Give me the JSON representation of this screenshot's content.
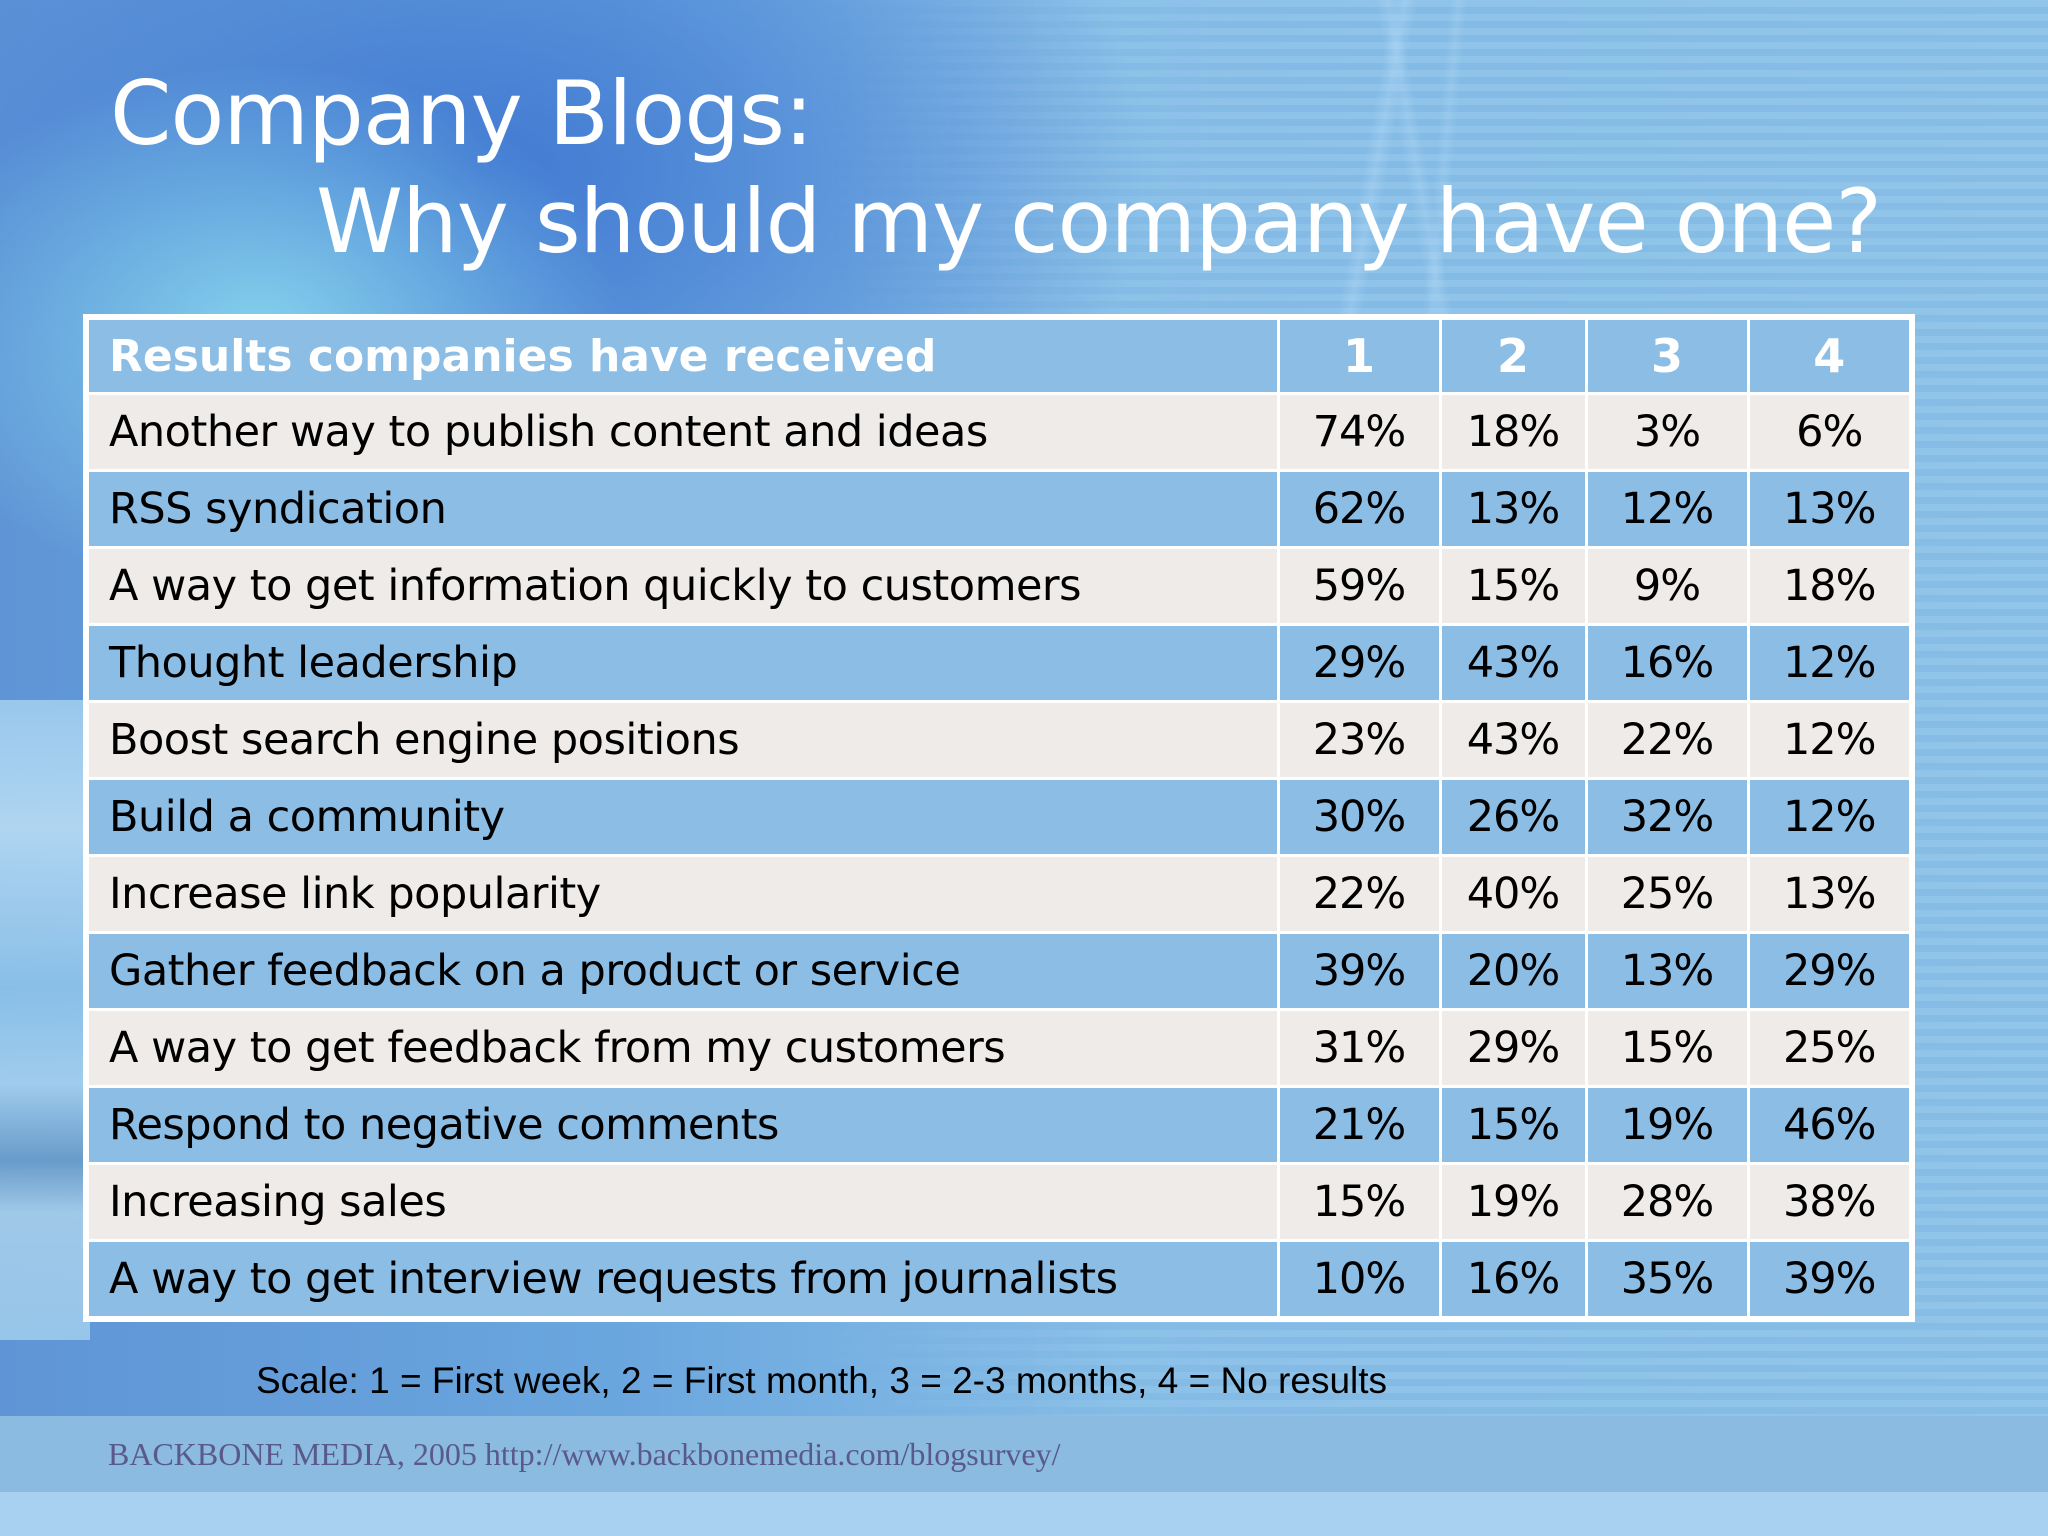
{
  "slide": {
    "title_line1": "Company Blogs:",
    "title_line2": "Why should my company have one?"
  },
  "table": {
    "header": {
      "label": "Results companies have received",
      "columns": [
        "1",
        "2",
        "3",
        "4"
      ]
    },
    "rows": [
      {
        "label": "Another way to publish content and ideas",
        "values": [
          "74%",
          "18%",
          "3%",
          "6%"
        ]
      },
      {
        "label": "RSS syndication",
        "values": [
          "62%",
          "13%",
          "12%",
          "13%"
        ]
      },
      {
        "label": "A way to get information quickly to customers",
        "values": [
          "59%",
          "15%",
          "9%",
          "18%"
        ]
      },
      {
        "label": "Thought leadership",
        "values": [
          "29%",
          "43%",
          "16%",
          "12%"
        ]
      },
      {
        "label": "Boost search engine positions",
        "values": [
          "23%",
          "43%",
          "22%",
          "12%"
        ]
      },
      {
        "label": "Build a community",
        "values": [
          "30%",
          "26%",
          "32%",
          "12%"
        ]
      },
      {
        "label": "Increase link popularity",
        "values": [
          "22%",
          "40%",
          "25%",
          "13%"
        ]
      },
      {
        "label": "Gather feedback on a product or service",
        "values": [
          "39%",
          "20%",
          "13%",
          "29%"
        ]
      },
      {
        "label": "A way to get feedback from my customers",
        "values": [
          "31%",
          "29%",
          "15%",
          "25%"
        ]
      },
      {
        "label": "Respond to negative comments",
        "values": [
          "21%",
          "15%",
          "19%",
          "46%"
        ]
      },
      {
        "label": "Increasing sales",
        "values": [
          "15%",
          "19%",
          "28%",
          "38%"
        ]
      },
      {
        "label": "A way to get interview requests from journalists",
        "values": [
          "10%",
          "16%",
          "35%",
          "39%"
        ]
      }
    ]
  },
  "footer": {
    "scale_note": "Scale: 1 = First week, 2 = First month, 3 = 2-3 months, 4 = No results",
    "source": "BACKBONE MEDIA, 2005 http://www.backbonemedia.com/blogsurvey/"
  },
  "colors": {
    "header_row": "#8cbde5",
    "alt_row_light": "#eeebe8",
    "alt_row_blue": "#8cbde5",
    "title_text": "#ffffff",
    "source_text": "#5a5a8a"
  },
  "chart_data": {
    "type": "table",
    "title": "Company Blogs: Why should my company have one?",
    "columns": [
      "Results companies have received",
      "1",
      "2",
      "3",
      "4"
    ],
    "column_legend": {
      "1": "First week",
      "2": "First month",
      "3": "2-3 months",
      "4": "No results"
    },
    "categories": [
      "Another way to publish content and ideas",
      "RSS syndication",
      "A way to get information quickly to customers",
      "Thought leadership",
      "Boost search engine positions",
      "Build a community",
      "Increase link popularity",
      "Gather feedback on a product or service",
      "A way to get feedback from my customers",
      "Respond to negative comments",
      "Increasing sales",
      "A way to get interview requests from journalists"
    ],
    "series": [
      {
        "name": "1 (First week)",
        "values": [
          74,
          62,
          59,
          29,
          23,
          30,
          22,
          39,
          31,
          21,
          15,
          10
        ]
      },
      {
        "name": "2 (First month)",
        "values": [
          18,
          13,
          15,
          43,
          43,
          26,
          40,
          20,
          29,
          15,
          19,
          16
        ]
      },
      {
        "name": "3 (2-3 months)",
        "values": [
          3,
          12,
          9,
          16,
          22,
          32,
          25,
          13,
          15,
          19,
          28,
          35
        ]
      },
      {
        "name": "4 (No results)",
        "values": [
          6,
          13,
          18,
          12,
          12,
          12,
          13,
          29,
          25,
          46,
          38,
          39
        ]
      }
    ],
    "unit": "%",
    "note": "Scale: 1 = First week, 2 = First month, 3 = 2-3 months, 4 = No results",
    "source": "BACKBONE MEDIA, 2005 http://www.backbonemedia.com/blogsurvey/"
  }
}
